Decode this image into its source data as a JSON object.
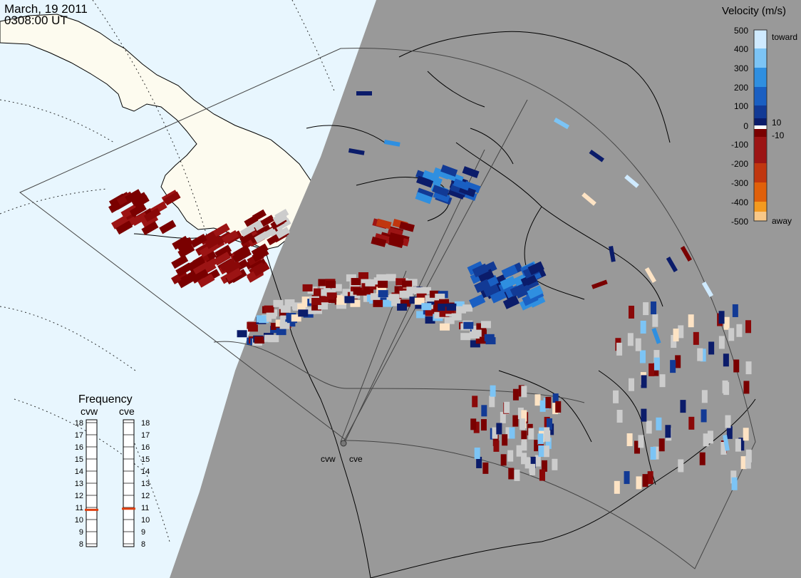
{
  "header": {
    "date": "March, 19 2011",
    "time": "0308:00 UT"
  },
  "legend": {
    "title": "Velocity (m/s)",
    "ticks": [
      "500",
      "400",
      "300",
      "200",
      "100",
      "0",
      "-100",
      "-200",
      "-300",
      "-400",
      "-500"
    ],
    "ticks_small": [
      "10",
      "-10"
    ],
    "toward_label": "toward",
    "away_label": "away",
    "colors": [
      "#cfeaff",
      "#7cc4f5",
      "#2f8fe0",
      "#1a5fc2",
      "#123a95",
      "#0b1c6a",
      "#7a0000",
      "#9c1414",
      "#c0360f",
      "#e0600a",
      "#f39a1f",
      "#f8c888",
      "#fde3c4"
    ]
  },
  "frequency": {
    "title": "Frequency",
    "radars": [
      "cvw",
      "cve"
    ],
    "scale": [
      "18",
      "17",
      "16",
      "15",
      "14",
      "13",
      "12",
      "11",
      "10",
      "9",
      "8"
    ],
    "current": {
      "cvw": 10.8,
      "cve": 10.9
    },
    "indicator_color": "#e04010"
  },
  "stations": {
    "cvw": "cvw",
    "cve": "cve"
  },
  "map_colors": {
    "night": "#999999",
    "ocean_day": "#e8f6fe",
    "land_day": "#fdfbef",
    "ground_scatter": "#cccccc"
  }
}
